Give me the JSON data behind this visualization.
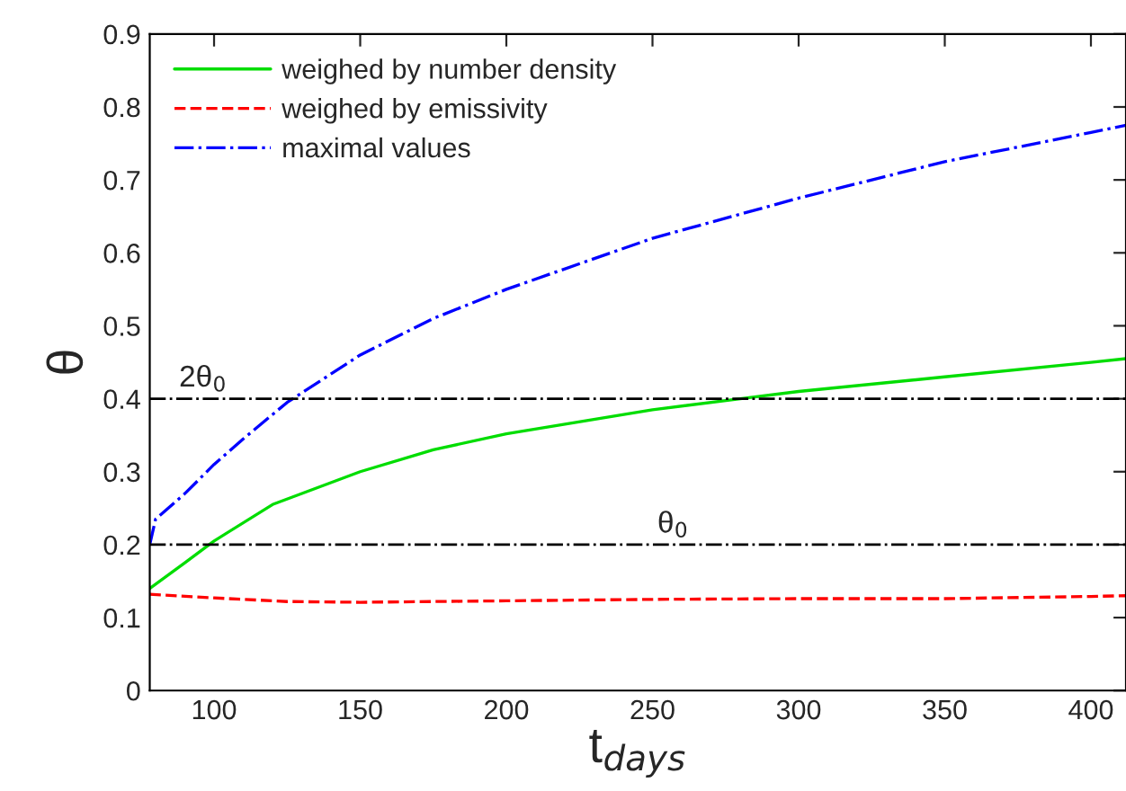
{
  "chart_data": {
    "type": "line",
    "xlabel": "t$_{days}$",
    "ylabel": "θ",
    "xlim": [
      78,
      412
    ],
    "ylim": [
      0,
      0.9
    ],
    "xticks": [
      100,
      150,
      200,
      250,
      300,
      350,
      400
    ],
    "yticks": [
      0,
      0.1,
      0.2,
      0.3,
      0.4,
      0.5,
      0.6,
      0.7,
      0.8,
      0.9
    ],
    "legend": "top left",
    "grid": false,
    "marker": "none",
    "series": [
      {
        "name": "weighed by number density",
        "color": "#00dd00",
        "line_style": "solid",
        "x": [
          78,
          90,
          100,
          120,
          150,
          175,
          200,
          250,
          280,
          300,
          350,
          400,
          412
        ],
        "values": [
          0.14,
          0.175,
          0.205,
          0.255,
          0.3,
          0.33,
          0.352,
          0.385,
          0.4,
          0.41,
          0.43,
          0.45,
          0.455
        ]
      },
      {
        "name": "weighed by emissivity",
        "color": "#ff0000",
        "line_style": "dashed",
        "x": [
          78,
          100,
          125,
          150,
          200,
          250,
          300,
          350,
          400,
          412
        ],
        "values": [
          0.132,
          0.127,
          0.122,
          0.121,
          0.123,
          0.125,
          0.126,
          0.126,
          0.129,
          0.13
        ]
      },
      {
        "name": "maximal values",
        "color": "#0000ff",
        "line_style": "dashdot",
        "x": [
          78,
          80,
          90,
          100,
          110,
          125,
          150,
          175,
          200,
          250,
          300,
          350,
          400,
          412
        ],
        "values": [
          0.2,
          0.235,
          0.27,
          0.31,
          0.345,
          0.395,
          0.46,
          0.51,
          0.55,
          0.62,
          0.675,
          0.725,
          0.765,
          0.775
        ]
      }
    ],
    "ref_lines": [
      {
        "axis": "y",
        "value": 0.4,
        "label": "2θ$_{0}$",
        "color": "#000000",
        "line_style": "dashdot"
      },
      {
        "axis": "y",
        "value": 0.2,
        "label": "θ$_{0}$",
        "color": "#000000",
        "line_style": "dashdot"
      }
    ]
  }
}
